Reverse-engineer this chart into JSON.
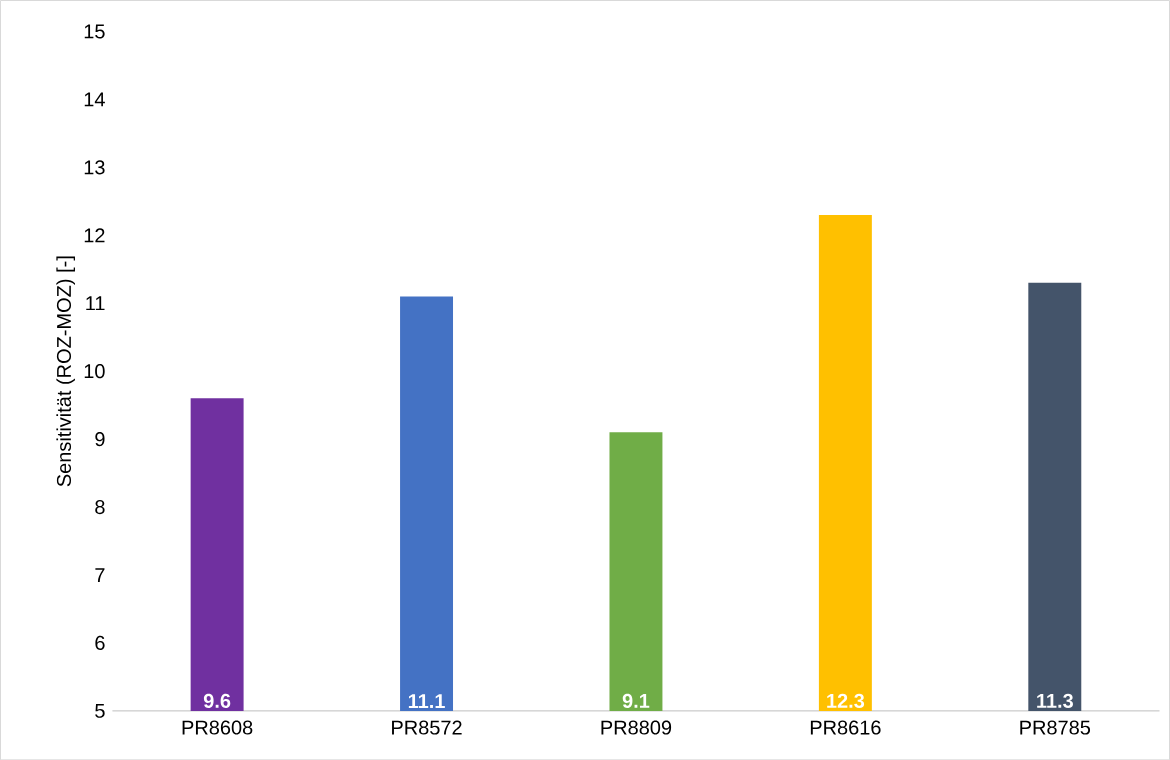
{
  "chart_data": {
    "type": "bar",
    "ylabel": "Sensitivität (ROZ-MOZ) [-]",
    "categories": [
      "PR8608",
      "PR8572",
      "PR8809",
      "PR8616",
      "PR8785"
    ],
    "values": [
      9.6,
      11.1,
      9.1,
      12.3,
      11.3
    ],
    "colors": [
      "#7030a0",
      "#4472c4",
      "#70ad47",
      "#ffc000",
      "#44546a"
    ],
    "ylim": [
      5,
      15
    ],
    "yticks": [
      5,
      6,
      7,
      8,
      9,
      10,
      11,
      12,
      13,
      14,
      15
    ],
    "data_labels": true
  }
}
